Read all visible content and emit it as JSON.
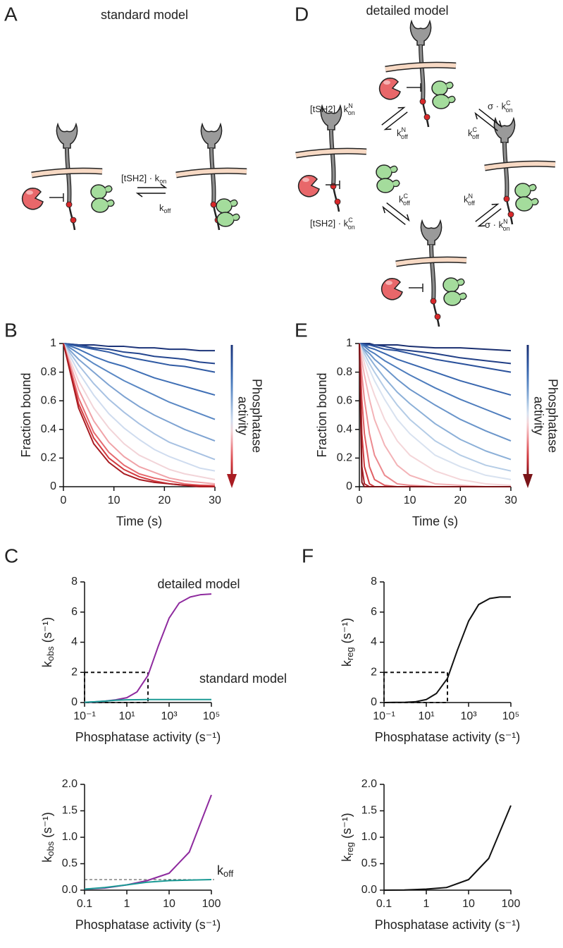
{
  "panel_labels": [
    "A",
    "B",
    "C",
    "D",
    "E",
    "F"
  ],
  "diagram_a": {
    "title": "standard model",
    "forward": {
      "base": "[tSH2] · k",
      "sub": "on"
    },
    "reverse": {
      "base": "k",
      "sub": "off"
    }
  },
  "diagram_d": {
    "title": "detailed model",
    "rates": [
      {
        "base": "[tSH2] · k",
        "sup": "N",
        "sub": "on"
      },
      {
        "base": "k",
        "sup": "N",
        "sub": "off"
      },
      {
        "base": "σ · k",
        "sup": "C",
        "sub": "on"
      },
      {
        "base": "k",
        "sup": "C",
        "sub": "off"
      },
      {
        "base": "k",
        "sup": "C",
        "sub": "off"
      },
      {
        "base": "[tSH2] · k",
        "sup": "C",
        "sub": "on"
      },
      {
        "base": "k",
        "sup": "N",
        "sub": "off"
      },
      {
        "base": "σ · k",
        "sup": "N",
        "sub": "on"
      }
    ]
  },
  "chart_data": [
    {
      "type": "line",
      "x": [
        0,
        3,
        6,
        9,
        12,
        15,
        18,
        21,
        24,
        27,
        30
      ],
      "xlim": [
        0,
        30
      ],
      "xticks": [
        0,
        10,
        20,
        30
      ],
      "ylim": [
        0,
        1
      ],
      "yticks": [
        0,
        0.2,
        0.4,
        0.6,
        0.8,
        1
      ],
      "xlabel": "Time (s)",
      "ylabel": "Fraction bound",
      "colorbar_label": [
        "Phosphatase",
        "activity"
      ],
      "series": [
        {
          "color": "#1c3479",
          "values": [
            1,
            0.99,
            0.99,
            0.98,
            0.98,
            0.97,
            0.97,
            0.96,
            0.96,
            0.95,
            0.95
          ]
        },
        {
          "color": "#24468f",
          "values": [
            1,
            0.99,
            0.97,
            0.96,
            0.94,
            0.93,
            0.91,
            0.9,
            0.89,
            0.87,
            0.86
          ]
        },
        {
          "color": "#2f5aa3",
          "values": [
            1,
            0.98,
            0.96,
            0.94,
            0.91,
            0.89,
            0.87,
            0.85,
            0.84,
            0.82,
            0.8
          ]
        },
        {
          "color": "#3f6fb5",
          "values": [
            1,
            0.96,
            0.91,
            0.87,
            0.84,
            0.8,
            0.76,
            0.73,
            0.7,
            0.67,
            0.64
          ]
        },
        {
          "color": "#5a88c4",
          "values": [
            1,
            0.93,
            0.86,
            0.8,
            0.74,
            0.69,
            0.64,
            0.59,
            0.55,
            0.51,
            0.47
          ]
        },
        {
          "color": "#7ea3d2",
          "values": [
            1,
            0.89,
            0.8,
            0.71,
            0.63,
            0.56,
            0.5,
            0.45,
            0.4,
            0.36,
            0.32
          ]
        },
        {
          "color": "#a7c1e2",
          "values": [
            1,
            0.85,
            0.72,
            0.61,
            0.52,
            0.44,
            0.37,
            0.31,
            0.27,
            0.23,
            0.19
          ]
        },
        {
          "color": "#cfdcef",
          "values": [
            1,
            0.8,
            0.64,
            0.51,
            0.41,
            0.33,
            0.26,
            0.21,
            0.17,
            0.13,
            0.11
          ]
        },
        {
          "color": "#f2d4d8",
          "values": [
            1,
            0.74,
            0.55,
            0.41,
            0.3,
            0.22,
            0.17,
            0.12,
            0.09,
            0.07,
            0.05
          ]
        },
        {
          "color": "#f0a3a8",
          "values": [
            1,
            0.68,
            0.46,
            0.31,
            0.21,
            0.14,
            0.1,
            0.06,
            0.04,
            0.03,
            0.02
          ]
        },
        {
          "color": "#e66a6f",
          "values": [
            1,
            0.62,
            0.38,
            0.24,
            0.15,
            0.09,
            0.06,
            0.04,
            0.02,
            0.01,
            0.01
          ]
        },
        {
          "color": "#d23a3f",
          "values": [
            1,
            0.58,
            0.34,
            0.2,
            0.12,
            0.07,
            0.04,
            0.02,
            0.01,
            0.01,
            0
          ]
        },
        {
          "color": "#a91c22",
          "values": [
            1,
            0.55,
            0.3,
            0.17,
            0.09,
            0.05,
            0.03,
            0.02,
            0.01,
            0,
            0
          ]
        }
      ]
    },
    {
      "type": "line",
      "x": [
        0,
        0.5,
        1,
        2,
        3,
        5,
        7.5,
        10,
        15,
        20,
        25,
        30
      ],
      "xlim": [
        0,
        30
      ],
      "xticks": [
        0,
        10,
        20,
        30
      ],
      "ylim": [
        0,
        1
      ],
      "yticks": [
        0,
        0.2,
        0.4,
        0.6,
        0.8,
        1
      ],
      "xlabel": "Time (s)",
      "ylabel": "Fraction bound",
      "colorbar_label": [
        "Phosphatase",
        "activity"
      ],
      "series": [
        {
          "color": "#1a2f70",
          "values": [
            1,
            1,
            1,
            1,
            0.99,
            0.99,
            0.99,
            0.98,
            0.97,
            0.97,
            0.96,
            0.95
          ]
        },
        {
          "color": "#213f86",
          "values": [
            1,
            1,
            1,
            0.99,
            0.99,
            0.98,
            0.96,
            0.95,
            0.93,
            0.9,
            0.88,
            0.86
          ]
        },
        {
          "color": "#2a519b",
          "values": [
            1,
            1,
            0.99,
            0.99,
            0.98,
            0.96,
            0.95,
            0.93,
            0.89,
            0.86,
            0.83,
            0.8
          ]
        },
        {
          "color": "#3866ae",
          "values": [
            1,
            0.99,
            0.99,
            0.97,
            0.96,
            0.93,
            0.89,
            0.86,
            0.8,
            0.74,
            0.69,
            0.64
          ]
        },
        {
          "color": "#4e7dbd",
          "values": [
            1,
            0.99,
            0.98,
            0.95,
            0.93,
            0.88,
            0.83,
            0.78,
            0.69,
            0.61,
            0.54,
            0.47
          ]
        },
        {
          "color": "#6a95ca",
          "values": [
            1,
            0.98,
            0.96,
            0.93,
            0.89,
            0.83,
            0.75,
            0.68,
            0.57,
            0.47,
            0.39,
            0.32
          ]
        },
        {
          "color": "#8cb0d8",
          "values": [
            1,
            0.97,
            0.95,
            0.9,
            0.85,
            0.76,
            0.66,
            0.58,
            0.44,
            0.33,
            0.25,
            0.19
          ]
        },
        {
          "color": "#b4cce6",
          "values": [
            1,
            0.96,
            0.93,
            0.86,
            0.8,
            0.69,
            0.57,
            0.47,
            0.32,
            0.22,
            0.15,
            0.11
          ]
        },
        {
          "color": "#d8e2f0",
          "values": [
            1,
            0.95,
            0.9,
            0.82,
            0.74,
            0.61,
            0.47,
            0.37,
            0.22,
            0.14,
            0.08,
            0.05
          ]
        },
        {
          "color": "#f4d6d9",
          "values": [
            1,
            0.93,
            0.86,
            0.74,
            0.64,
            0.47,
            0.32,
            0.22,
            0.11,
            0.05,
            0.02,
            0.01
          ]
        },
        {
          "color": "#f3b3b7",
          "values": [
            1,
            0.88,
            0.78,
            0.61,
            0.47,
            0.29,
            0.15,
            0.08,
            0.02,
            0.01,
            0,
            0
          ]
        },
        {
          "color": "#ec8a8f",
          "values": [
            1,
            0.78,
            0.61,
            0.37,
            0.22,
            0.08,
            0.02,
            0.01,
            0,
            0,
            0,
            0
          ]
        },
        {
          "color": "#e05f64",
          "values": [
            1,
            0.61,
            0.37,
            0.14,
            0.05,
            0.01,
            0,
            0,
            0,
            0,
            0,
            0
          ]
        },
        {
          "color": "#cf3a3f",
          "values": [
            1,
            0.37,
            0.14,
            0.02,
            0,
            0,
            0,
            0,
            0,
            0,
            0,
            0
          ]
        },
        {
          "color": "#b0222a",
          "values": [
            1,
            0.14,
            0.02,
            0,
            0,
            0,
            0,
            0,
            0,
            0,
            0,
            0
          ]
        },
        {
          "color": "#7a1418",
          "values": [
            1,
            0.03,
            0,
            0,
            0,
            0,
            0,
            0,
            0,
            0,
            0,
            0
          ]
        }
      ]
    },
    {
      "type": "line",
      "log_x": true,
      "x": [
        0.1,
        0.3,
        1,
        3,
        10,
        30,
        100,
        300,
        1000,
        3000,
        10000,
        30000,
        100000
      ],
      "xlim": [
        0.1,
        100000
      ],
      "xticks": [
        {
          "value": 0.1,
          "label": "10⁻¹"
        },
        {
          "value": 10,
          "label": "10¹"
        },
        {
          "value": 1000,
          "label": "10³"
        },
        {
          "value": 100000,
          "label": "10⁵"
        }
      ],
      "ylim": [
        0,
        8
      ],
      "yticks": [
        0,
        2,
        4,
        6,
        8
      ],
      "xlabel": "Phosphatase activity (s⁻¹)",
      "ylabel": [
        "k",
        "obs",
        " (s⁻¹)"
      ],
      "annotations": [
        "detailed model",
        "standard model"
      ],
      "series": [
        {
          "color": "#8e2a9e",
          "values": [
            0.02,
            0.04,
            0.1,
            0.18,
            0.32,
            0.7,
            1.8,
            3.7,
            5.6,
            6.6,
            7.0,
            7.15,
            7.2
          ]
        },
        {
          "color": "#1b9a95",
          "values": [
            0.02,
            0.05,
            0.1,
            0.15,
            0.18,
            0.19,
            0.2,
            0.2,
            0.2,
            0.2,
            0.2,
            0.2,
            0.2
          ]
        }
      ]
    },
    {
      "type": "line",
      "log_x": true,
      "x": [
        0.1,
        0.3,
        1,
        3,
        10,
        30,
        100
      ],
      "xlim": [
        0.1,
        100
      ],
      "xticks": [
        0.1,
        1,
        10,
        100
      ],
      "ylim": [
        0,
        2
      ],
      "yticks": [
        {
          "value": 0,
          "label": "0.0"
        },
        0.5,
        {
          "value": 1,
          "label": "1.0"
        },
        1.5,
        {
          "value": 2,
          "label": "2.0"
        }
      ],
      "xlabel": "Phosphatase activity (s⁻¹)",
      "ylabel": [
        "k",
        "obs",
        " (s⁻¹)"
      ],
      "hline": {
        "value": 0.2,
        "label": [
          "k",
          "off"
        ]
      },
      "series": [
        {
          "color": "#8e2a9e",
          "values": [
            0.02,
            0.04,
            0.1,
            0.18,
            0.32,
            0.72,
            1.8
          ]
        },
        {
          "color": "#1b9a95",
          "values": [
            0.02,
            0.05,
            0.1,
            0.15,
            0.18,
            0.19,
            0.2
          ]
        }
      ]
    },
    {
      "type": "line",
      "log_x": true,
      "x": [
        0.1,
        0.3,
        1,
        3,
        10,
        30,
        100,
        300,
        1000,
        3000,
        10000,
        30000,
        100000
      ],
      "xlim": [
        0.1,
        100000
      ],
      "xticks": [
        {
          "value": 0.1,
          "label": "10⁻¹"
        },
        {
          "value": 10,
          "label": "10¹"
        },
        {
          "value": 1000,
          "label": "10³"
        },
        {
          "value": 100000,
          "label": "10⁵"
        }
      ],
      "ylim": [
        0,
        8
      ],
      "yticks": [
        0,
        2,
        4,
        6,
        8
      ],
      "xlabel": "Phosphatase activity (s⁻¹)",
      "ylabel": [
        "k",
        "reg",
        " (s⁻¹)"
      ],
      "series": [
        {
          "color": "#111111",
          "values": [
            0,
            0.01,
            0.02,
            0.05,
            0.2,
            0.6,
            1.6,
            3.5,
            5.4,
            6.5,
            6.9,
            7.0,
            7.0
          ]
        }
      ]
    },
    {
      "type": "line",
      "log_x": true,
      "x": [
        0.1,
        0.3,
        1,
        3,
        10,
        30,
        100
      ],
      "xlim": [
        0.1,
        100
      ],
      "xticks": [
        0.1,
        1,
        10,
        100
      ],
      "ylim": [
        0,
        2
      ],
      "yticks": [
        {
          "value": 0,
          "label": "0.0"
        },
        0.5,
        {
          "value": 1,
          "label": "1.0"
        },
        1.5,
        {
          "value": 2,
          "label": "2.0"
        }
      ],
      "xlabel": "Phosphatase activity (s⁻¹)",
      "ylabel": [
        "k",
        "reg",
        " (s⁻¹)"
      ],
      "series": [
        {
          "color": "#111111",
          "values": [
            0,
            0.003,
            0.02,
            0.05,
            0.2,
            0.6,
            1.6
          ]
        }
      ]
    }
  ]
}
